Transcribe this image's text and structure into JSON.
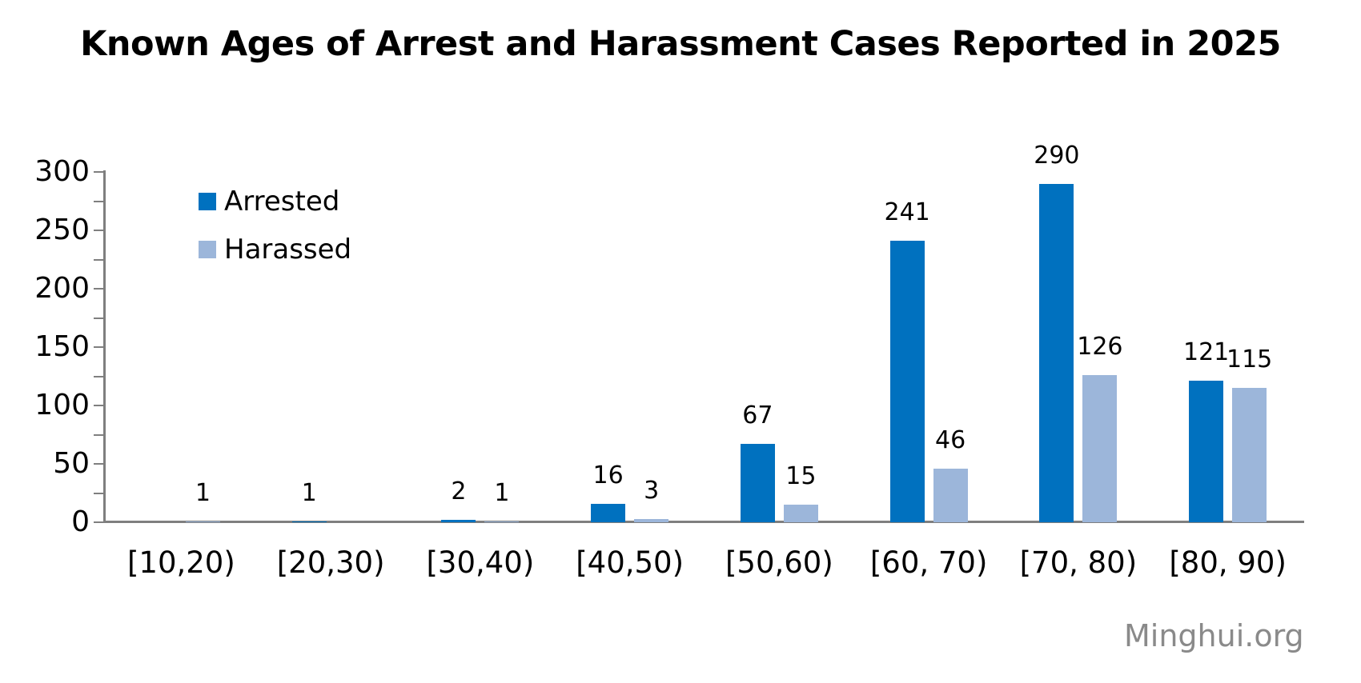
{
  "watermark": "Minghui.org",
  "colors": {
    "arrested": "#0071bf",
    "harassed": "#9cb6da",
    "axis": "#7f7f7f",
    "text": "#000000",
    "watermark": "#8a8a8a",
    "background": "#ffffff"
  },
  "legend": {
    "items": [
      {
        "label": "Arrested",
        "color": "#0071bf"
      },
      {
        "label": "Harassed",
        "color": "#9cb6da"
      }
    ],
    "position": "top-left-inside"
  },
  "chart_data": {
    "type": "bar",
    "title": "Known Ages of Arrest and Harassment Cases Reported in 2025",
    "categories": [
      "[10,20)",
      "[20,30)",
      "[30,40)",
      "[40,50)",
      "[50,60)",
      "[60, 70)",
      "[70, 80)",
      "[80, 90)"
    ],
    "series": [
      {
        "name": "Arrested",
        "color": "#0071bf",
        "values": [
          0,
          1,
          2,
          16,
          67,
          241,
          290,
          121
        ]
      },
      {
        "name": "Harassed",
        "color": "#9cb6da",
        "values": [
          1,
          0,
          1,
          3,
          15,
          46,
          126,
          115
        ]
      }
    ],
    "xlabel": "",
    "ylabel": "",
    "ylim": [
      0,
      300
    ],
    "yticks": [
      0,
      50,
      100,
      150,
      200,
      250,
      300
    ],
    "minor_tick_step": 25,
    "grid": false,
    "legend_position": "top-left-inside",
    "data_labels": "value shown above each bar; zero values have no label"
  }
}
